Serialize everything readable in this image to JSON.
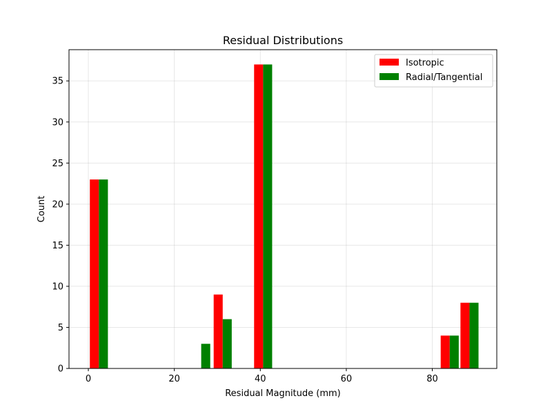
{
  "chart_data": {
    "type": "bar",
    "title": "Residual Distributions",
    "xlabel": "Residual Magnitude (mm)",
    "ylabel": "Count",
    "xlim": [
      -4.5,
      95
    ],
    "ylim": [
      0,
      38.8
    ],
    "xticks": [
      0,
      20,
      40,
      60,
      80
    ],
    "yticks": [
      0,
      5,
      10,
      15,
      20,
      25,
      30,
      35
    ],
    "grid": true,
    "legend_position": "top-right",
    "bar_width": 2.1,
    "series": [
      {
        "name": "Isotropic",
        "color": "#ff0000",
        "bars": [
          {
            "x": 1.4,
            "value": 23
          },
          {
            "x": 30.2,
            "value": 9
          },
          {
            "x": 39.6,
            "value": 37
          },
          {
            "x": 83.0,
            "value": 4
          },
          {
            "x": 87.6,
            "value": 8
          }
        ]
      },
      {
        "name": "Radial/Tangential",
        "color": "#008000",
        "bars": [
          {
            "x": 3.5,
            "value": 23
          },
          {
            "x": 27.3,
            "value": 3
          },
          {
            "x": 32.3,
            "value": 6
          },
          {
            "x": 41.7,
            "value": 37
          },
          {
            "x": 85.1,
            "value": 4
          },
          {
            "x": 89.7,
            "value": 8
          }
        ]
      }
    ]
  }
}
